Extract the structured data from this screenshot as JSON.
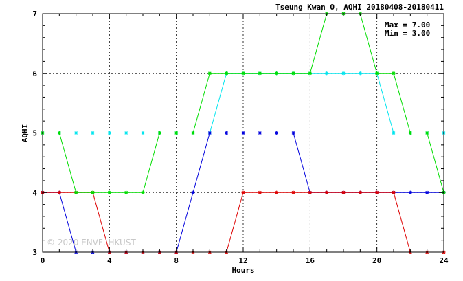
{
  "chart_data": {
    "type": "line",
    "title": "Tseung Kwan O, AQHI 20180408-20180411",
    "xlabel": "Hours",
    "ylabel": "AQHI",
    "xlim": [
      0,
      24
    ],
    "ylim": [
      3,
      7
    ],
    "xticks": [
      "0",
      "4",
      "8",
      "12",
      "16",
      "20",
      "24"
    ],
    "yticks": [
      "3",
      "4",
      "5",
      "6",
      "7"
    ],
    "grid": true,
    "stats": {
      "max": "Max = 7.00",
      "min": "Min = 3.00"
    },
    "watermark": "© 2020 ENVF, HKUST",
    "x": [
      0,
      1,
      2,
      3,
      4,
      5,
      6,
      7,
      8,
      9,
      10,
      11,
      12,
      13,
      14,
      15,
      16,
      17,
      18,
      19,
      20,
      21,
      22,
      23,
      24
    ],
    "series": [
      {
        "color": "#00e5ee",
        "values": [
          5,
          5,
          5,
          5,
          5,
          5,
          5,
          5,
          5,
          5,
          5,
          6,
          6,
          6,
          6,
          6,
          6,
          6,
          6,
          6,
          6,
          5,
          5,
          5,
          5
        ]
      },
      {
        "color": "#0000dd",
        "values": [
          4,
          4,
          3,
          3,
          3,
          3,
          3,
          3,
          3,
          4,
          5,
          5,
          5,
          5,
          5,
          5,
          4,
          4,
          4,
          4,
          4,
          4,
          4,
          4,
          4
        ]
      },
      {
        "color": "#dd0000",
        "values": [
          4,
          4,
          4,
          4,
          3,
          3,
          3,
          3,
          3,
          3,
          3,
          3,
          4,
          4,
          4,
          4,
          4,
          4,
          4,
          4,
          4,
          4,
          3,
          3,
          3
        ]
      },
      {
        "color": "#00dd00",
        "values": [
          5,
          5,
          4,
          4,
          4,
          4,
          4,
          5,
          5,
          5,
          6,
          6,
          6,
          6,
          6,
          6,
          6,
          7,
          7,
          7,
          6,
          6,
          5,
          5,
          4
        ]
      }
    ]
  }
}
